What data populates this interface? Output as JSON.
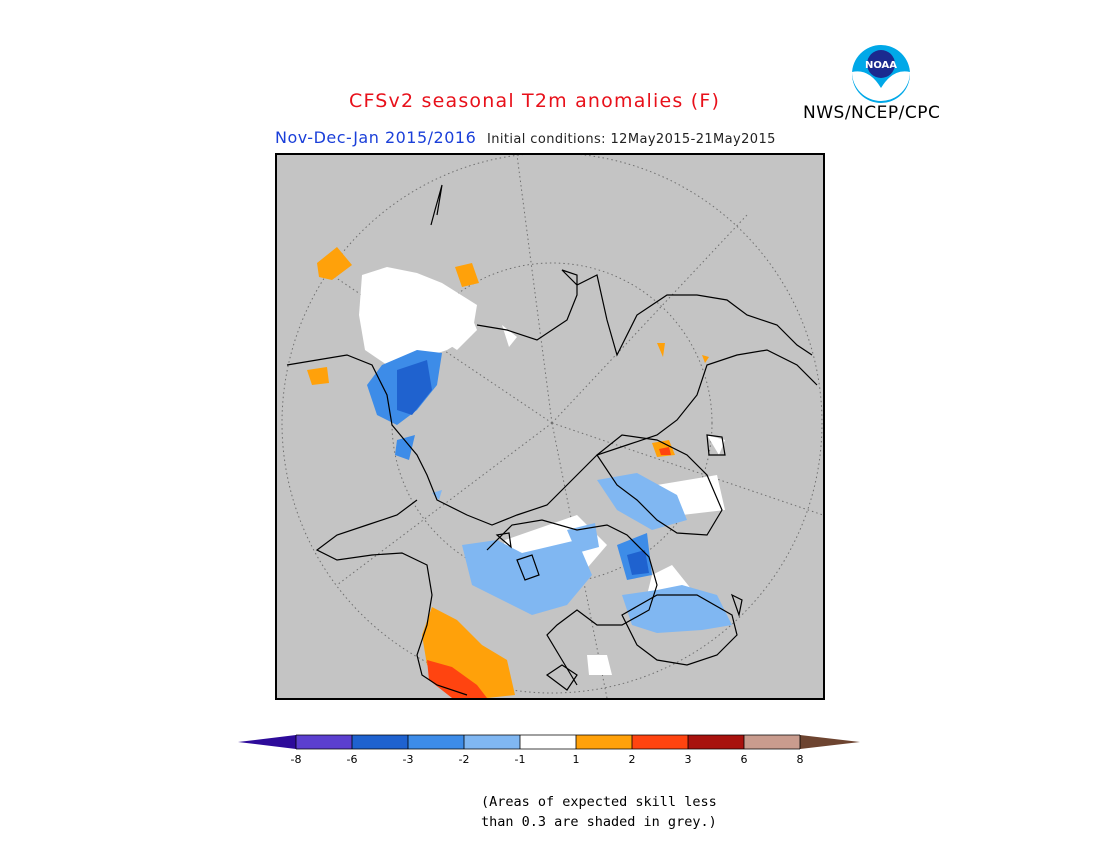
{
  "header": {
    "title": "CFSv2 seasonal T2m anomalies (F)",
    "agency": "NWS/NCEP/CPC",
    "season": "Nov-Dec-Jan 2015/2016",
    "initial_conditions": "Initial conditions: 12May2015-21May2015",
    "logo_text": "NOAA"
  },
  "colorbar": {
    "ticks": [
      "-8",
      "-6",
      "-3",
      "-2",
      "-1",
      "1",
      "2",
      "3",
      "6",
      "8"
    ],
    "colors": [
      "#2d0b9a",
      "#5b3fcf",
      "#1f62cf",
      "#3d8ce8",
      "#80b7f2",
      "#ffffff",
      "#ffa10a",
      "#ff4410",
      "#a8120e",
      "#c99c8e",
      "#6d4430"
    ]
  },
  "colors": {
    "background_grey": "#c4c4c4",
    "land_outline": "#000000",
    "graticule": "#6f6f6f"
  },
  "footnote": {
    "line1": "(Areas of expected skill less",
    "line2": "than 0.3 are shaded in grey.)"
  }
}
